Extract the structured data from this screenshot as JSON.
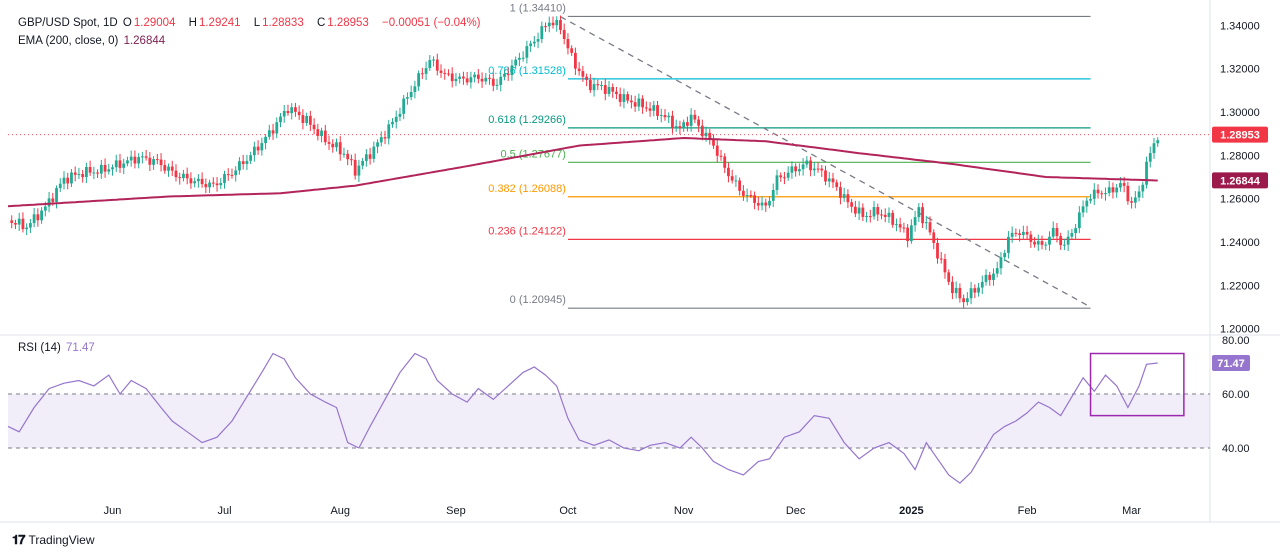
{
  "header": {
    "symbol": "GBP/USD Spot, 1D",
    "open_label": "O",
    "open": "1.29004",
    "high_label": "H",
    "high": "1.29241",
    "low_label": "L",
    "low": "1.28833",
    "close_label": "C",
    "close": "1.28953",
    "change": "−0.00051 (−0.04%)",
    "ema_label": "EMA (200, close, 0)",
    "ema_value": "1.26844"
  },
  "rsi_header": {
    "label": "RSI (14)",
    "value": "71.47"
  },
  "footer": {
    "brand": "TradingView"
  },
  "colors": {
    "up": "#22ab94",
    "down": "#f23645",
    "ema": "#b2245a",
    "rsi": "#9575cd",
    "box": "#9c27b0"
  },
  "chart_data": {
    "type": "candlestick",
    "title": "GBP/USD Spot, 1D",
    "price_axis": {
      "min": 1.198,
      "max": 1.348,
      "ticks": [
        "1.34000",
        "1.32000",
        "1.30000",
        "1.28000",
        "1.26000",
        "1.24000",
        "1.22000",
        "1.20000"
      ]
    },
    "time_axis": {
      "labels": [
        {
          "label": "Jun",
          "day": 15
        },
        {
          "label": "Jul",
          "day": 45
        },
        {
          "label": "Aug",
          "day": 76
        },
        {
          "label": "Sep",
          "day": 107
        },
        {
          "label": "Oct",
          "day": 137
        },
        {
          "label": "Nov",
          "day": 168
        },
        {
          "label": "Dec",
          "day": 198
        },
        {
          "label": "2025",
          "day": 229
        },
        {
          "label": "Feb",
          "day": 260
        },
        {
          "label": "Mar",
          "day": 288
        }
      ],
      "day_range": [
        -13,
        309
      ]
    },
    "price_path": [
      [
        -13,
        1.25
      ],
      [
        -8,
        1.247
      ],
      [
        -3,
        1.256
      ],
      [
        2,
        1.269
      ],
      [
        7,
        1.272
      ],
      [
        12,
        1.273
      ],
      [
        17,
        1.276
      ],
      [
        22,
        1.279
      ],
      [
        27,
        1.277
      ],
      [
        32,
        1.271
      ],
      [
        37,
        1.268
      ],
      [
        42,
        1.266
      ],
      [
        47,
        1.272
      ],
      [
        52,
        1.28
      ],
      [
        57,
        1.29
      ],
      [
        62,
        1.302
      ],
      [
        67,
        1.296
      ],
      [
        72,
        1.287
      ],
      [
        77,
        1.281
      ],
      [
        80,
        1.273
      ],
      [
        85,
        1.283
      ],
      [
        90,
        1.295
      ],
      [
        95,
        1.31
      ],
      [
        100,
        1.324
      ],
      [
        104,
        1.317
      ],
      [
        108,
        1.315
      ],
      [
        113,
        1.316
      ],
      [
        118,
        1.313
      ],
      [
        123,
        1.323
      ],
      [
        128,
        1.333
      ],
      [
        132,
        1.342
      ],
      [
        135,
        1.339
      ],
      [
        138,
        1.325
      ],
      [
        142,
        1.313
      ],
      [
        147,
        1.311
      ],
      [
        152,
        1.306
      ],
      [
        157,
        1.303
      ],
      [
        162,
        1.299
      ],
      [
        167,
        1.292
      ],
      [
        170,
        1.298
      ],
      [
        173,
        1.291
      ],
      [
        176,
        1.285
      ],
      [
        179,
        1.274
      ],
      [
        183,
        1.264
      ],
      [
        186,
        1.26
      ],
      [
        190,
        1.256
      ],
      [
        193,
        1.269
      ],
      [
        197,
        1.273
      ],
      [
        201,
        1.276
      ],
      [
        205,
        1.272
      ],
      [
        209,
        1.265
      ],
      [
        212,
        1.258
      ],
      [
        216,
        1.252
      ],
      [
        220,
        1.254
      ],
      [
        224,
        1.25
      ],
      [
        228,
        1.243
      ],
      [
        231,
        1.255
      ],
      [
        234,
        1.244
      ],
      [
        237,
        1.23
      ],
      [
        240,
        1.218
      ],
      [
        243,
        1.213
      ],
      [
        246,
        1.218
      ],
      [
        249,
        1.223
      ],
      [
        252,
        1.227
      ],
      [
        255,
        1.242
      ],
      [
        258,
        1.245
      ],
      [
        261,
        1.241
      ],
      [
        264,
        1.238
      ],
      [
        267,
        1.245
      ],
      [
        270,
        1.238
      ],
      [
        273,
        1.248
      ],
      [
        276,
        1.26
      ],
      [
        279,
        1.263
      ],
      [
        282,
        1.263
      ],
      [
        285,
        1.267
      ],
      [
        288,
        1.258
      ],
      [
        290,
        1.262
      ],
      [
        292,
        1.276
      ],
      [
        295,
        1.2895
      ]
    ],
    "series": [
      {
        "name": "EMA (200, close, 0)",
        "points": [
          [
            -13,
            1.2565
          ],
          [
            30,
            1.261
          ],
          [
            60,
            1.2625
          ],
          [
            80,
            1.266
          ],
          [
            110,
            1.275
          ],
          [
            140,
            1.2845
          ],
          [
            168,
            1.288
          ],
          [
            190,
            1.2865
          ],
          [
            215,
            1.281
          ],
          [
            240,
            1.276
          ],
          [
            265,
            1.27
          ],
          [
            295,
            1.2684
          ]
        ]
      },
      {
        "name": "RSI (14)",
        "points": [
          [
            -13,
            48
          ],
          [
            -10,
            46
          ],
          [
            -6,
            55
          ],
          [
            -2,
            62
          ],
          [
            2,
            64
          ],
          [
            6,
            65
          ],
          [
            10,
            63
          ],
          [
            14,
            67
          ],
          [
            17,
            60
          ],
          [
            20,
            65
          ],
          [
            24,
            62
          ],
          [
            28,
            55
          ],
          [
            31,
            50
          ],
          [
            35,
            46
          ],
          [
            39,
            42
          ],
          [
            43,
            44
          ],
          [
            47,
            50
          ],
          [
            51,
            59
          ],
          [
            55,
            68
          ],
          [
            58,
            75
          ],
          [
            61,
            73
          ],
          [
            64,
            66
          ],
          [
            68,
            60
          ],
          [
            72,
            57
          ],
          [
            75,
            55
          ],
          [
            78,
            42
          ],
          [
            81,
            40
          ],
          [
            84,
            48
          ],
          [
            88,
            58
          ],
          [
            92,
            68
          ],
          [
            96,
            75
          ],
          [
            99,
            73
          ],
          [
            102,
            65
          ],
          [
            106,
            60
          ],
          [
            110,
            57
          ],
          [
            113,
            62
          ],
          [
            117,
            58
          ],
          [
            121,
            63
          ],
          [
            125,
            68
          ],
          [
            128,
            70
          ],
          [
            131,
            67
          ],
          [
            134,
            63
          ],
          [
            137,
            51
          ],
          [
            140,
            43
          ],
          [
            144,
            41
          ],
          [
            148,
            43
          ],
          [
            152,
            40
          ],
          [
            156,
            39
          ],
          [
            159,
            41
          ],
          [
            163,
            42
          ],
          [
            167,
            40
          ],
          [
            170,
            44
          ],
          [
            173,
            40
          ],
          [
            176,
            35
          ],
          [
            180,
            32
          ],
          [
            184,
            30
          ],
          [
            188,
            35
          ],
          [
            191,
            36
          ],
          [
            195,
            44
          ],
          [
            199,
            46
          ],
          [
            203,
            52
          ],
          [
            207,
            51
          ],
          [
            211,
            42
          ],
          [
            215,
            36
          ],
          [
            219,
            40
          ],
          [
            223,
            42
          ],
          [
            227,
            38
          ],
          [
            230,
            32
          ],
          [
            233,
            42
          ],
          [
            236,
            36
          ],
          [
            239,
            30
          ],
          [
            242,
            27
          ],
          [
            245,
            31
          ],
          [
            248,
            38
          ],
          [
            251,
            45
          ],
          [
            254,
            48
          ],
          [
            257,
            50
          ],
          [
            260,
            53
          ],
          [
            263,
            57
          ],
          [
            266,
            55
          ],
          [
            269,
            52
          ],
          [
            272,
            59
          ],
          [
            275,
            66
          ],
          [
            278,
            61
          ],
          [
            281,
            67
          ],
          [
            284,
            63
          ],
          [
            287,
            55
          ],
          [
            290,
            63
          ],
          [
            292,
            71
          ],
          [
            295,
            71.47
          ]
        ]
      }
    ],
    "fibonacci": [
      {
        "level": "1",
        "price": 1.3441,
        "label": "1 (1.34410)",
        "color": "#787b86"
      },
      {
        "level": "0.786",
        "price": 1.31528,
        "label": "0.786 (1.31528)",
        "color": "#00bcd4"
      },
      {
        "level": "0.618",
        "price": 1.29266,
        "label": "0.618 (1.29266)",
        "color": "#089981"
      },
      {
        "level": "0.5",
        "price": 1.27677,
        "label": "0.5 (1.27677)",
        "color": "#4caf50"
      },
      {
        "level": "0.382",
        "price": 1.26088,
        "label": "0.382 (1.26088)",
        "color": "#ff9800"
      },
      {
        "level": "0.236",
        "price": 1.24122,
        "label": "0.236 (1.24122)",
        "color": "#f23645"
      },
      {
        "level": "0",
        "price": 1.20945,
        "label": "0 (1.20945)",
        "color": "#787b86"
      }
    ],
    "fib_start_day": 137,
    "fib_end_day": 277,
    "trendline": {
      "from": [
        135,
        1.344
      ],
      "to": [
        277,
        1.21
      ]
    },
    "last_price": {
      "label": "1.28953",
      "value": 1.28953
    },
    "ema_last": {
      "label": "1.26844",
      "value": 1.26844
    },
    "rsi_axis": {
      "min": 20,
      "max": 80,
      "ticks": [
        "80.00",
        "60.00",
        "40.00"
      ],
      "upper": 60,
      "lower": 40,
      "highlight_day_range": [
        277,
        302
      ],
      "highlight_value_range": [
        52,
        75
      ]
    },
    "rsi_last": {
      "label": "71.47",
      "value": 71.47
    }
  }
}
